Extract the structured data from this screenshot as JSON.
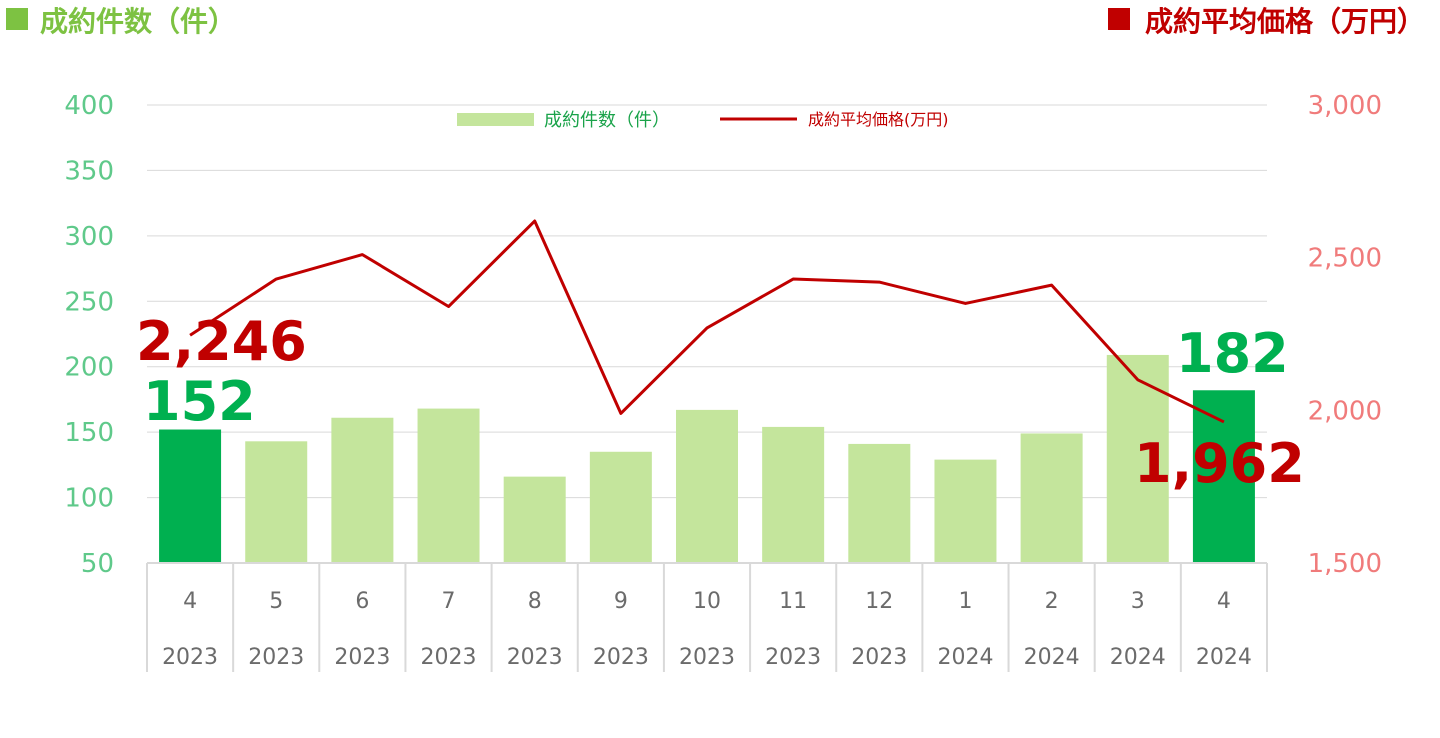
{
  "header": {
    "left_title": "成約件数（件）",
    "right_title": "成約平均価格（万円）"
  },
  "legend": {
    "bar_label": "成約件数（件）",
    "line_label": "成約平均価格(万円)"
  },
  "colors": {
    "bar_light": "#c4e59c",
    "bar_highlight": "#00b050",
    "line": "#c00000",
    "left_header": "#7dc242",
    "right_header": "#c00000",
    "left_tick": "#5fc98a",
    "right_tick": "#f07b7b"
  },
  "chart_data": {
    "type": "bar",
    "categories": [
      "4",
      "5",
      "6",
      "7",
      "8",
      "9",
      "10",
      "11",
      "12",
      "1",
      "2",
      "3",
      "4"
    ],
    "years": [
      "2023",
      "2023",
      "2023",
      "2023",
      "2023",
      "2023",
      "2023",
      "2023",
      "2023",
      "2024",
      "2024",
      "2024",
      "2024"
    ],
    "series": [
      {
        "name": "成約件数（件）",
        "type": "bar",
        "axis": "left",
        "values": [
          152,
          143,
          161,
          168,
          116,
          135,
          167,
          154,
          141,
          129,
          149,
          209,
          182
        ],
        "highlight_indices": [
          0,
          12
        ]
      },
      {
        "name": "成約平均価格(万円)",
        "type": "line",
        "axis": "right",
        "values": [
          2246,
          2430,
          2510,
          2340,
          2620,
          1990,
          2270,
          2430,
          2420,
          2350,
          2410,
          2100,
          1962
        ]
      }
    ],
    "left_axis": {
      "ylim": [
        50,
        400
      ],
      "ticks": [
        "50",
        "100",
        "150",
        "200",
        "250",
        "300",
        "350",
        "400"
      ]
    },
    "right_axis": {
      "ylim": [
        1500,
        3000
      ],
      "ticks": [
        "1,500",
        "2,000",
        "2,500",
        "3,000"
      ]
    },
    "annotations": {
      "first_price": "2,246",
      "first_count": "152",
      "last_count": "182",
      "last_price": "1,962"
    },
    "grid": true,
    "legend_position": "top-center"
  }
}
